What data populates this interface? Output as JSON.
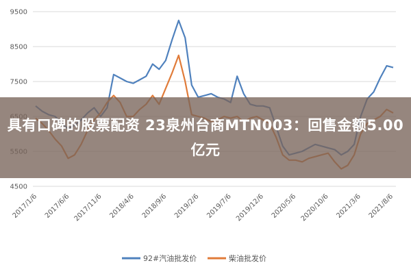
{
  "headline": "具有口碑的股票配资 23泉州台商MTN003：回售金额5.00亿元",
  "chart_data": {
    "type": "line",
    "title": "",
    "xlabel": "",
    "ylabel": "",
    "ylim": [
      4500,
      9500
    ],
    "yticks": [
      4500,
      5500,
      6500,
      7500,
      8500,
      9500
    ],
    "grid": "horizontal",
    "legend_position": "bottom",
    "x_tick_labels": [
      "2017/1/6",
      "2017/6/6",
      "2017/11/6",
      "2018/4/6",
      "2018/9/6",
      "2019/2/6",
      "2019/7/6",
      "2019/12/6",
      "2020/5/6",
      "2020/10/6",
      "2021/3/6",
      "2021/8/6"
    ],
    "x": [
      "2017/1",
      "2017/2",
      "2017/3",
      "2017/4",
      "2017/5",
      "2017/6",
      "2017/7",
      "2017/8",
      "2017/9",
      "2017/10",
      "2017/11",
      "2017/12",
      "2018/1",
      "2018/2",
      "2018/3",
      "2018/4",
      "2018/5",
      "2018/6",
      "2018/7",
      "2018/8",
      "2018/9",
      "2018/10",
      "2018/11",
      "2018/12",
      "2019/1",
      "2019/2",
      "2019/3",
      "2019/4",
      "2019/5",
      "2019/6",
      "2019/7",
      "2019/8",
      "2019/9",
      "2019/10",
      "2019/11",
      "2019/12",
      "2020/1",
      "2020/2",
      "2020/3",
      "2020/4",
      "2020/5",
      "2020/6",
      "2020/7",
      "2020/8",
      "2020/9",
      "2020/10",
      "2020/11",
      "2020/12",
      "2021/1",
      "2021/2",
      "2021/3",
      "2021/4",
      "2021/5",
      "2021/6",
      "2021/7",
      "2021/8"
    ],
    "series": [
      {
        "name": "92#汽油批发价",
        "color": "#4f81bd",
        "values": [
          6800,
          6650,
          6550,
          6500,
          6300,
          6150,
          6250,
          6400,
          6600,
          6750,
          6500,
          6750,
          7700,
          7600,
          7500,
          7450,
          7550,
          7650,
          8000,
          7850,
          8100,
          8700,
          9250,
          8750,
          7400,
          7050,
          7100,
          7150,
          7050,
          7000,
          6900,
          7650,
          7150,
          6850,
          6800,
          6800,
          6750,
          6200,
          5650,
          5400,
          5450,
          5500,
          5600,
          5700,
          5650,
          5600,
          5550,
          5400,
          5500,
          5700,
          6500,
          7000,
          7200,
          7600,
          7950,
          7900
        ]
      },
      {
        "name": "柴油批发价",
        "color": "#e07b39",
        "values": [
          6450,
          6300,
          6100,
          5850,
          5650,
          5300,
          5400,
          5700,
          6100,
          6400,
          6600,
          6900,
          7100,
          6900,
          6500,
          6500,
          6700,
          6850,
          7100,
          6850,
          7300,
          7750,
          8250,
          7500,
          6550,
          6500,
          6450,
          6350,
          6400,
          6500,
          6450,
          6500,
          6350,
          6450,
          6500,
          6400,
          6300,
          5900,
          5400,
          5250,
          5250,
          5200,
          5300,
          5350,
          5400,
          5450,
          5200,
          5000,
          5100,
          5400,
          6000,
          6300,
          6400,
          6500,
          6700,
          6600
        ]
      }
    ]
  }
}
